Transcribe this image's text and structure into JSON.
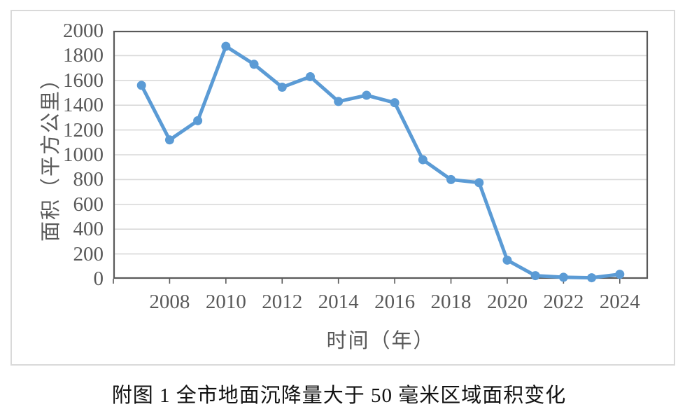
{
  "figure": {
    "caption": "附图 1  全市地面沉降量大于 50 毫米区域面积变化"
  },
  "chart_data": {
    "type": "line",
    "title": "",
    "xlabel": "时间（年）",
    "ylabel": "面积（平方公里）",
    "x": [
      2007,
      2008,
      2009,
      2010,
      2011,
      2012,
      2013,
      2014,
      2015,
      2016,
      2017,
      2018,
      2019,
      2020,
      2021,
      2022,
      2023,
      2024
    ],
    "values": [
      1560,
      1120,
      1275,
      1875,
      1730,
      1545,
      1630,
      1430,
      1480,
      1420,
      960,
      800,
      775,
      150,
      25,
      12,
      8,
      36
    ],
    "xlim": [
      2006,
      2025
    ],
    "ylim": [
      0,
      2000
    ],
    "yticks": [
      0,
      200,
      400,
      600,
      800,
      1000,
      1200,
      1400,
      1600,
      1800,
      2000
    ],
    "xtick_labels": [
      2008,
      2010,
      2012,
      2014,
      2016,
      2018,
      2020,
      2022,
      2024
    ],
    "grid": true,
    "legend": false,
    "marker": "circle",
    "colors": {
      "line": "#5B9BD5",
      "grid": "#D9D9D9",
      "axis": "#595959",
      "tick_text": "#595959",
      "caption_text": "#111111",
      "frame_border": "#D9D9D9"
    }
  }
}
